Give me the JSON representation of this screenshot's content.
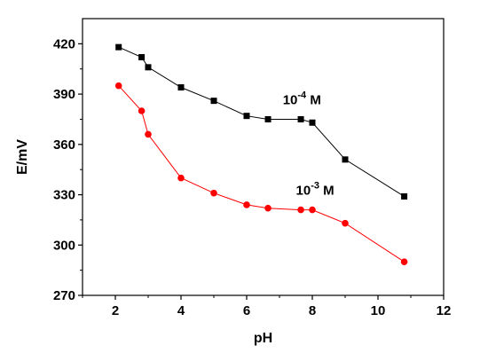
{
  "chart_data": {
    "type": "line",
    "xlabel": "pH",
    "ylabel": "E/mV",
    "xlim": [
      1,
      12
    ],
    "ylim": [
      270,
      435
    ],
    "xticks": [
      2,
      4,
      6,
      8,
      10,
      12
    ],
    "yticks": [
      270,
      300,
      330,
      360,
      390,
      420
    ],
    "grid": false,
    "legend": "none",
    "series": [
      {
        "color": "#000000",
        "marker": "square",
        "x": [
          2.1,
          2.8,
          3.0,
          4.0,
          5.0,
          6.0,
          6.65,
          7.65,
          8.0,
          9.0,
          10.8
        ],
        "y": [
          418,
          412,
          406,
          394,
          386,
          377,
          375,
          375,
          373,
          351,
          329
        ]
      },
      {
        "color": "#ff0000",
        "marker": "circle",
        "x": [
          2.1,
          2.8,
          3.0,
          4.0,
          5.0,
          6.0,
          6.65,
          7.65,
          8.0,
          9.0,
          10.8
        ],
        "y": [
          395,
          380,
          366,
          340,
          331,
          324,
          322,
          321,
          321,
          313,
          290
        ]
      }
    ],
    "annotations": [
      {
        "base": "10",
        "exponent": "-4",
        "unit": "M",
        "x": 7.1,
        "y": 384
      },
      {
        "base": "10",
        "exponent": "-3",
        "unit": "M",
        "x": 7.5,
        "y": 330
      }
    ]
  }
}
